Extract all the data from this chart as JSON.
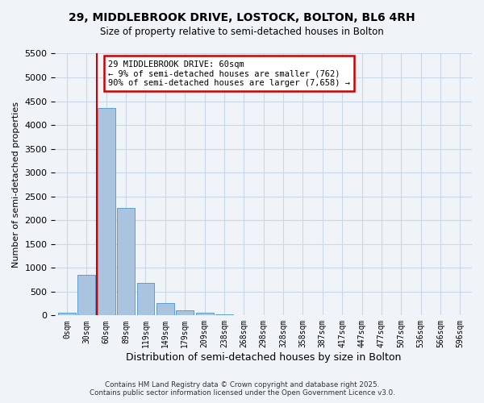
{
  "title": "29, MIDDLEBROOK DRIVE, LOSTOCK, BOLTON, BL6 4RH",
  "subtitle": "Size of property relative to semi-detached houses in Bolton",
  "xlabel": "Distribution of semi-detached houses by size in Bolton",
  "ylabel": "Number of semi-detached properties",
  "bin_labels": [
    "0sqm",
    "30sqm",
    "60sqm",
    "89sqm",
    "119sqm",
    "149sqm",
    "179sqm",
    "209sqm",
    "238sqm",
    "268sqm",
    "298sqm",
    "328sqm",
    "358sqm",
    "387sqm",
    "417sqm",
    "447sqm",
    "477sqm",
    "507sqm",
    "536sqm",
    "566sqm",
    "596sqm"
  ],
  "bar_heights": [
    50,
    850,
    4350,
    2250,
    690,
    265,
    115,
    55,
    25,
    10,
    0,
    0,
    0,
    0,
    0,
    0,
    0,
    0,
    0,
    0,
    0
  ],
  "bar_color": "#aac4e0",
  "bar_edge_color": "#5a9fd4",
  "vline_x_idx": 2,
  "vline_color": "#cc0000",
  "annotation_text": "29 MIDDLEBROOK DRIVE: 60sqm\n← 9% of semi-detached houses are smaller (762)\n90% of semi-detached houses are larger (7,658) →",
  "annotation_box_color": "#ffffff",
  "annotation_box_edge": "#cc0000",
  "ylim": [
    0,
    5500
  ],
  "yticks": [
    0,
    500,
    1000,
    1500,
    2000,
    2500,
    3000,
    3500,
    4000,
    4500,
    5000,
    5500
  ],
  "grid_color": "#c8d8e8",
  "bg_color": "#f0f4f8",
  "footer_line1": "Contains HM Land Registry data © Crown copyright and database right 2025.",
  "footer_line2": "Contains public sector information licensed under the Open Government Licence v3.0."
}
